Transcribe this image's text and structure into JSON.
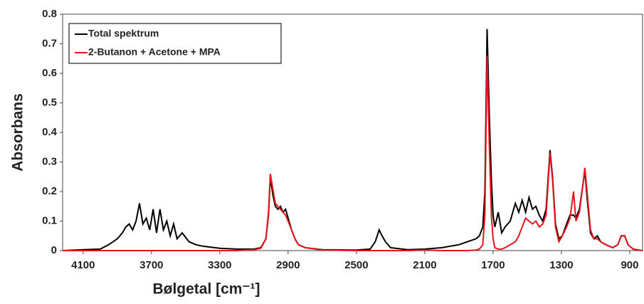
{
  "chart_data": {
    "type": "line",
    "xlabel": "Bølgetal [cm⁻¹]",
    "ylabel": "Absorbans",
    "x": [
      4220,
      4100,
      4000,
      3950,
      3900,
      3870,
      3850,
      3830,
      3810,
      3790,
      3770,
      3750,
      3730,
      3710,
      3690,
      3670,
      3650,
      3630,
      3610,
      3590,
      3570,
      3550,
      3520,
      3480,
      3440,
      3400,
      3300,
      3200,
      3100,
      3060,
      3030,
      3015,
      3004,
      2990,
      2975,
      2960,
      2945,
      2930,
      2915,
      2900,
      2880,
      2860,
      2840,
      2800,
      2700,
      2500,
      2420,
      2390,
      2367,
      2350,
      2330,
      2300,
      2200,
      2100,
      2000,
      1900,
      1850,
      1800,
      1780,
      1760,
      1748,
      1735,
      1722,
      1710,
      1700,
      1690,
      1670,
      1650,
      1630,
      1600,
      1570,
      1550,
      1530,
      1510,
      1490,
      1470,
      1450,
      1430,
      1410,
      1390,
      1367,
      1352,
      1335,
      1315,
      1295,
      1270,
      1250,
      1229,
      1215,
      1195,
      1175,
      1163,
      1150,
      1130,
      1110,
      1090,
      1070,
      1040,
      1000,
      970,
      950,
      930,
      910,
      880,
      825
    ],
    "series": [
      {
        "name": "Total spektrum",
        "color": "#000000",
        "values": [
          0,
          0.003,
          0.005,
          0.02,
          0.04,
          0.06,
          0.08,
          0.09,
          0.07,
          0.1,
          0.16,
          0.09,
          0.11,
          0.07,
          0.14,
          0.06,
          0.14,
          0.07,
          0.1,
          0.05,
          0.09,
          0.04,
          0.06,
          0.03,
          0.02,
          0.015,
          0.008,
          0.005,
          0.005,
          0.01,
          0.04,
          0.12,
          0.25,
          0.19,
          0.15,
          0.14,
          0.15,
          0.13,
          0.14,
          0.11,
          0.07,
          0.04,
          0.02,
          0.01,
          0.003,
          0.002,
          0.005,
          0.03,
          0.07,
          0.05,
          0.03,
          0.01,
          0.003,
          0.005,
          0.01,
          0.02,
          0.03,
          0.04,
          0.05,
          0.08,
          0.2,
          0.75,
          0.45,
          0.24,
          0.12,
          0.08,
          0.13,
          0.06,
          0.08,
          0.1,
          0.16,
          0.13,
          0.17,
          0.13,
          0.18,
          0.14,
          0.15,
          0.12,
          0.1,
          0.14,
          0.34,
          0.25,
          0.09,
          0.04,
          0.05,
          0.09,
          0.12,
          0.12,
          0.11,
          0.14,
          0.22,
          0.27,
          0.18,
          0.06,
          0.04,
          0.05,
          0.03,
          0.02,
          0.01,
          0.02,
          0.05,
          0.05,
          0.02,
          0.005,
          0
        ]
      },
      {
        "name": "2-Butanon + Acetone + MPA",
        "color": "#e8141b",
        "values": [
          0,
          0,
          0,
          0,
          0,
          0,
          0,
          0,
          0,
          0,
          0,
          0,
          0,
          0,
          0,
          0,
          0,
          0,
          0,
          0,
          0,
          0,
          0,
          0,
          0,
          0,
          0,
          0,
          0.003,
          0.008,
          0.04,
          0.13,
          0.26,
          0.21,
          0.16,
          0.15,
          0.14,
          0.13,
          0.12,
          0.1,
          0.07,
          0.04,
          0.02,
          0.01,
          0.002,
          0,
          0,
          0,
          0,
          0,
          0,
          0,
          0,
          0.002,
          0,
          0,
          0,
          0.002,
          0.005,
          0.02,
          0.12,
          0.66,
          0.35,
          0.12,
          0.04,
          0.01,
          0.005,
          0.005,
          0.01,
          0.02,
          0.03,
          0.05,
          0.08,
          0.11,
          0.1,
          0.09,
          0.1,
          0.08,
          0.09,
          0.12,
          0.33,
          0.24,
          0.08,
          0.03,
          0.05,
          0.08,
          0.11,
          0.2,
          0.1,
          0.13,
          0.22,
          0.28,
          0.2,
          0.07,
          0.04,
          0.04,
          0.03,
          0.02,
          0.01,
          0.02,
          0.05,
          0.05,
          0.02,
          0.005,
          0
        ]
      }
    ],
    "xlim": [
      4220,
      825
    ],
    "xticks": [
      4100,
      3700,
      3300,
      2900,
      2500,
      2100,
      1700,
      1300,
      900
    ],
    "ylim": [
      0,
      0.8
    ],
    "yticks": [
      0,
      0.1,
      0.2,
      0.3,
      0.4,
      0.5,
      0.6,
      0.7,
      0.8
    ],
    "grid": false,
    "legend": "upper-left"
  }
}
